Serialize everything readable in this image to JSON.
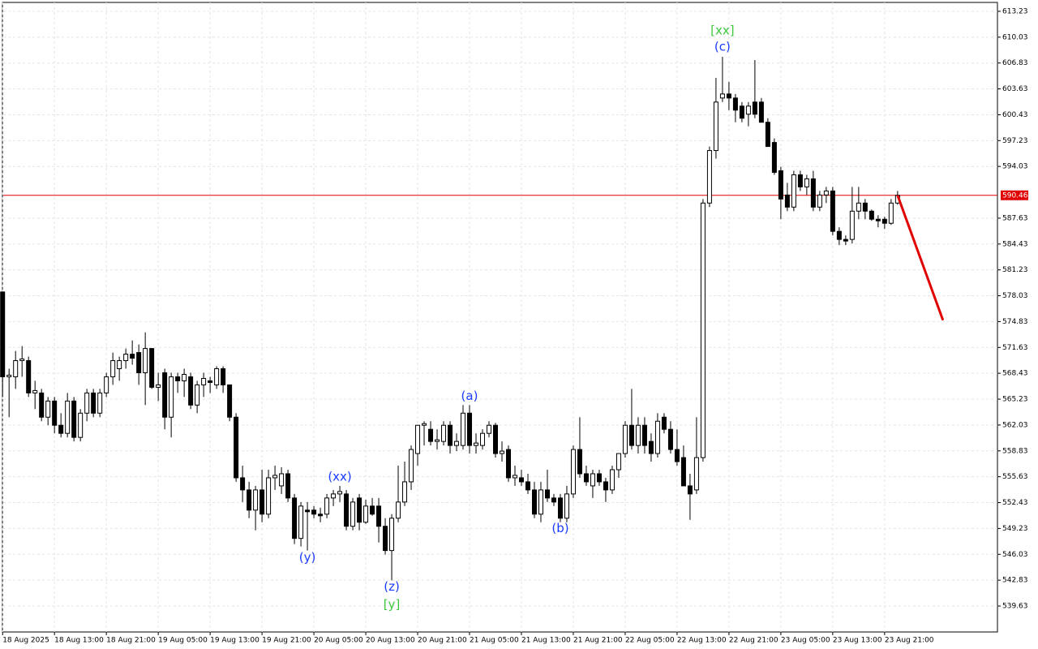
{
  "chart_data": {
    "type": "candlestick",
    "ylim": [
      536.42,
      614.33
    ],
    "yticks": [
      613.23,
      610.03,
      606.83,
      603.63,
      600.43,
      597.23,
      594.03,
      587.63,
      584.43,
      581.23,
      578.03,
      574.83,
      571.63,
      568.43,
      565.23,
      562.03,
      558.83,
      555.63,
      552.43,
      549.23,
      546.03,
      542.83,
      539.63
    ],
    "xlim": [
      -0.4,
      153.4
    ],
    "xticks": [
      {
        "value": 0,
        "label": "18 Aug 2025"
      },
      {
        "value": 8,
        "label": "18 Aug 13:00"
      },
      {
        "value": 16,
        "label": "18 Aug 21:00"
      },
      {
        "value": 24,
        "label": "19 Aug 05:00"
      },
      {
        "value": 32,
        "label": "19 Aug 13:00"
      },
      {
        "value": 40,
        "label": "19 Aug 21:00"
      },
      {
        "value": 48,
        "label": "20 Aug 05:00"
      },
      {
        "value": 56,
        "label": "20 Aug 13:00"
      },
      {
        "value": 64,
        "label": "20 Aug 21:00"
      },
      {
        "value": 72,
        "label": "21 Aug 05:00"
      },
      {
        "value": 80,
        "label": "21 Aug 13:00"
      },
      {
        "value": 88,
        "label": "21 Aug 21:00"
      },
      {
        "value": 96,
        "label": "22 Aug 05:00"
      },
      {
        "value": 104,
        "label": "22 Aug 13:00"
      },
      {
        "value": 112,
        "label": "22 Aug 21:00"
      },
      {
        "value": 120,
        "label": "23 Aug 05:00"
      },
      {
        "value": 128,
        "label": "23 Aug 13:00"
      },
      {
        "value": 136,
        "label": "23 Aug 21:00"
      }
    ],
    "grid": true,
    "up_color": "#ffffff",
    "down_color": "#000000",
    "ohlc": [
      [
        578.5,
        578.5,
        565.5,
        568
      ],
      [
        568,
        569,
        563,
        568.2
      ],
      [
        568,
        571.2,
        566.5,
        570
      ],
      [
        570,
        571.8,
        568,
        570.2
      ],
      [
        570,
        570.5,
        565.5,
        566
      ],
      [
        566,
        567.5,
        564,
        566.3
      ],
      [
        566,
        566.5,
        562.5,
        563
      ],
      [
        563,
        565.5,
        562,
        565
      ],
      [
        565,
        565.5,
        561,
        562
      ],
      [
        562,
        563.5,
        560.5,
        561
      ],
      [
        561,
        566,
        560.5,
        565
      ],
      [
        565,
        565.5,
        560,
        560.5
      ],
      [
        560.5,
        564,
        560,
        563.5
      ],
      [
        563.5,
        566.5,
        562.5,
        566
      ],
      [
        566,
        566.5,
        563,
        563.5
      ],
      [
        563.5,
        566.5,
        563,
        566
      ],
      [
        566,
        568.5,
        565.5,
        568
      ],
      [
        568,
        571,
        567,
        570
      ],
      [
        569,
        570.5,
        567.5,
        570
      ],
      [
        570,
        571.5,
        569,
        570.8
      ],
      [
        570.8,
        572.5,
        569.5,
        570.3
      ],
      [
        571,
        572,
        567,
        568.5
      ],
      [
        568.5,
        573.5,
        564.5,
        571.5
      ],
      [
        571.5,
        571.5,
        566.5,
        566.7
      ],
      [
        566.7,
        568.5,
        565,
        567
      ],
      [
        568.5,
        569,
        561.5,
        563
      ],
      [
        563,
        568.5,
        560.5,
        568
      ],
      [
        568,
        568.5,
        566,
        567.5
      ],
      [
        567.5,
        569,
        565.5,
        568.3
      ],
      [
        568,
        568.5,
        564,
        564.5
      ],
      [
        564.5,
        567.5,
        563.5,
        567
      ],
      [
        567,
        568.5,
        565.5,
        567.8
      ],
      [
        567.5,
        568,
        566,
        567.3
      ],
      [
        567,
        569.3,
        566.5,
        569
      ],
      [
        569,
        569.3,
        566,
        567
      ],
      [
        567,
        567,
        562.5,
        563
      ],
      [
        563,
        563.5,
        555,
        555.5
      ],
      [
        555.5,
        557,
        552.5,
        554
      ],
      [
        554,
        555,
        550.5,
        551.5
      ],
      [
        551.5,
        554.5,
        549,
        554
      ],
      [
        554,
        556.5,
        550,
        551
      ],
      [
        551,
        556.5,
        550.5,
        555.5
      ],
      [
        555.5,
        557,
        554,
        555.8
      ],
      [
        554.5,
        556.8,
        553.5,
        556
      ],
      [
        556,
        556.5,
        552.5,
        553
      ],
      [
        553,
        553.5,
        547.3,
        548
      ],
      [
        548,
        552.5,
        547,
        552
      ],
      [
        551.5,
        552.5,
        546.5,
        551.3
      ],
      [
        551.5,
        552,
        550.5,
        551
      ],
      [
        551,
        551.8,
        550,
        550.8
      ],
      [
        551,
        553.5,
        550.5,
        553
      ],
      [
        553,
        554,
        552,
        553.5
      ],
      [
        553.5,
        554.5,
        552.5,
        553.8
      ],
      [
        553.5,
        554,
        549,
        549.5
      ],
      [
        549.5,
        553,
        549,
        552.5
      ],
      [
        553,
        553.5,
        549,
        550
      ],
      [
        550,
        552.8,
        549.8,
        552
      ],
      [
        552,
        553,
        550.8,
        551
      ],
      [
        552,
        553,
        547.5,
        549.5
      ],
      [
        549.5,
        550.5,
        546,
        546.5
      ],
      [
        546.5,
        551,
        542.8,
        550.5
      ],
      [
        550.5,
        557,
        550,
        552.5
      ],
      [
        552.5,
        557.5,
        552,
        555
      ],
      [
        555,
        559.5,
        554,
        559
      ],
      [
        558.5,
        562,
        557,
        562
      ],
      [
        562,
        562.5,
        559.5,
        562.2
      ],
      [
        561.5,
        562.5,
        559.5,
        560
      ],
      [
        560,
        561.5,
        559,
        560.2
      ],
      [
        560,
        562.5,
        559.5,
        562
      ],
      [
        562,
        562.5,
        558.5,
        559.5
      ],
      [
        559.5,
        561,
        558.8,
        560
      ],
      [
        559.5,
        564.5,
        559,
        563.5
      ],
      [
        563.5,
        564.5,
        558.5,
        559.5
      ],
      [
        559.5,
        561,
        558.5,
        559.8
      ],
      [
        559.5,
        561.5,
        559,
        561
      ],
      [
        561,
        562.5,
        560.5,
        562
      ],
      [
        562,
        562.3,
        558,
        558.5
      ],
      [
        558.5,
        560,
        557.5,
        558.8
      ],
      [
        559,
        559.5,
        555,
        555.5
      ],
      [
        555.5,
        557,
        554.5,
        555.8
      ],
      [
        555.5,
        556.5,
        554.5,
        555
      ],
      [
        555,
        556,
        553.5,
        554
      ],
      [
        554,
        555,
        550.5,
        551
      ],
      [
        551,
        555,
        550,
        554
      ],
      [
        554,
        556.5,
        552.5,
        553
      ],
      [
        553,
        553.5,
        552,
        552.5
      ],
      [
        553,
        553.5,
        550,
        550.5
      ],
      [
        550.5,
        554.5,
        550,
        553.5
      ],
      [
        553.5,
        559.5,
        553,
        559
      ],
      [
        559,
        563,
        555.5,
        556
      ],
      [
        556,
        557,
        554.5,
        555
      ],
      [
        554.5,
        556.5,
        553,
        556
      ],
      [
        556,
        556.5,
        554.5,
        555
      ],
      [
        555,
        555.5,
        552.5,
        554
      ],
      [
        554,
        557,
        553.5,
        556.5
      ],
      [
        556.5,
        558.5,
        555.5,
        558.5
      ],
      [
        558.5,
        562.5,
        558,
        562
      ],
      [
        562,
        566.5,
        559,
        559.5
      ],
      [
        559.5,
        563,
        558.5,
        562
      ],
      [
        562,
        563,
        558.5,
        559.5
      ],
      [
        560,
        561,
        557.5,
        558.5
      ],
      [
        558.5,
        563.5,
        558,
        562.5
      ],
      [
        563,
        563.5,
        561,
        561.5
      ],
      [
        561.5,
        562.5,
        558.5,
        559
      ],
      [
        559,
        561.5,
        557,
        557.5
      ],
      [
        558,
        559.5,
        554.5,
        554.5
      ],
      [
        554.5,
        556,
        550.3,
        553.5
      ],
      [
        554,
        563,
        553.5,
        558
      ],
      [
        558,
        590,
        557.5,
        589.5
      ],
      [
        589.5,
        596.5,
        589,
        596
      ],
      [
        596,
        605,
        595,
        602
      ],
      [
        602.5,
        607.6,
        602,
        603
      ],
      [
        603,
        604.5,
        601,
        602.5
      ],
      [
        602.5,
        603,
        599.5,
        601
      ],
      [
        601.5,
        602,
        599.5,
        600
      ],
      [
        600.5,
        602,
        599,
        601.5
      ],
      [
        602,
        607.2,
        600,
        600.5
      ],
      [
        602,
        602.5,
        599.5,
        599.5
      ],
      [
        599.5,
        600,
        596.5,
        596.5
      ],
      [
        597,
        597.5,
        593,
        593.3
      ],
      [
        593.5,
        594,
        587.5,
        590
      ],
      [
        590.5,
        592,
        588.5,
        589
      ],
      [
        589,
        593.5,
        588.5,
        593
      ],
      [
        593,
        593.5,
        591,
        591.5
      ],
      [
        591.5,
        593,
        590.5,
        592.5
      ],
      [
        592.5,
        593.5,
        588.5,
        589
      ],
      [
        589,
        591,
        588.5,
        590.5
      ],
      [
        590.5,
        591.5,
        589.5,
        591
      ],
      [
        591,
        591.5,
        585.5,
        586
      ],
      [
        586,
        586.5,
        584.3,
        585
      ],
      [
        585,
        585.5,
        584.3,
        584.8
      ],
      [
        585,
        591.5,
        584.5,
        588.5
      ],
      [
        588.5,
        591.5,
        587.5,
        589.5
      ],
      [
        589.5,
        590,
        587.5,
        588.5
      ],
      [
        588.5,
        588.7,
        587.3,
        587.5
      ],
      [
        587.5,
        588,
        586.5,
        587.3
      ],
      [
        587.5,
        587.8,
        586.3,
        587
      ],
      [
        587,
        590,
        586.8,
        589.5
      ],
      [
        589.5,
        591,
        589.3,
        590.46
      ]
    ],
    "current_price": 590.46,
    "current_price_color": "#e00000",
    "forecast": {
      "x": [
        138,
        145
      ],
      "y": [
        590.46,
        575.0
      ],
      "color": "#e00000"
    },
    "annotations": [
      {
        "text": "[xx]",
        "x": 111,
        "y": 610.82,
        "color": "#3cc83c"
      },
      {
        "text": "(c)",
        "x": 111,
        "y": 608.8,
        "color": "#1a3cff"
      },
      {
        "text": "(xx)",
        "x": 52,
        "y": 555.6,
        "color": "#1a3cff"
      },
      {
        "text": "(y)",
        "x": 47,
        "y": 545.6,
        "color": "#1a3cff"
      },
      {
        "text": "(a)",
        "x": 72,
        "y": 565.6,
        "color": "#1a3cff"
      },
      {
        "text": "(b)",
        "x": 86,
        "y": 549.2,
        "color": "#1a3cff"
      },
      {
        "text": "(z)",
        "x": 60,
        "y": 542.0,
        "color": "#1a3cff"
      },
      {
        "text": "[y]",
        "x": 60,
        "y": 539.8,
        "color": "#3cc83c"
      }
    ]
  }
}
